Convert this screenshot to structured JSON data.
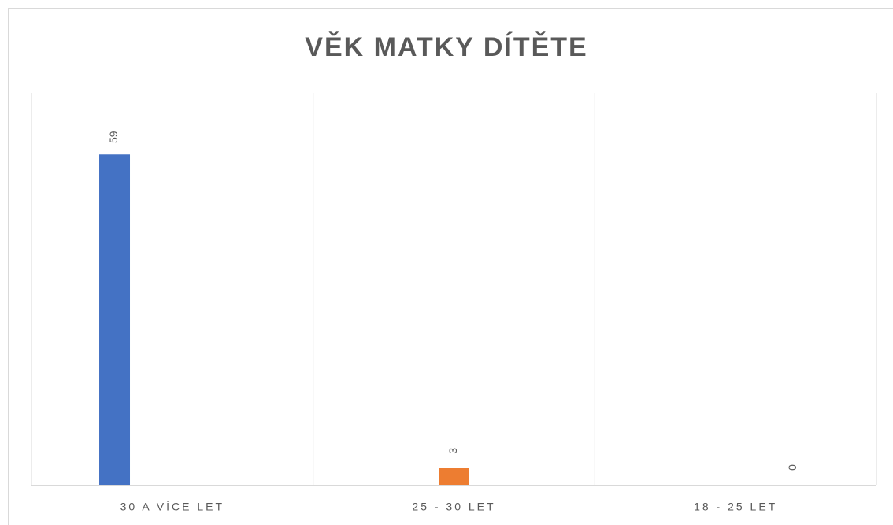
{
  "chart_data": {
    "type": "bar",
    "title": "VĚK MATKY DÍTĚTE",
    "categories": [
      "30 A VÍCE LET",
      "25 - 30 LET",
      "18 - 25 LET"
    ],
    "series": [
      {
        "color": "#4472c4",
        "values": [
          59,
          null,
          null
        ]
      },
      {
        "color": "#ed7d31",
        "values": [
          null,
          3,
          null
        ]
      },
      {
        "color": "#a5a5a5",
        "values": [
          null,
          null,
          0
        ]
      }
    ],
    "ylim": [
      0,
      70
    ]
  }
}
